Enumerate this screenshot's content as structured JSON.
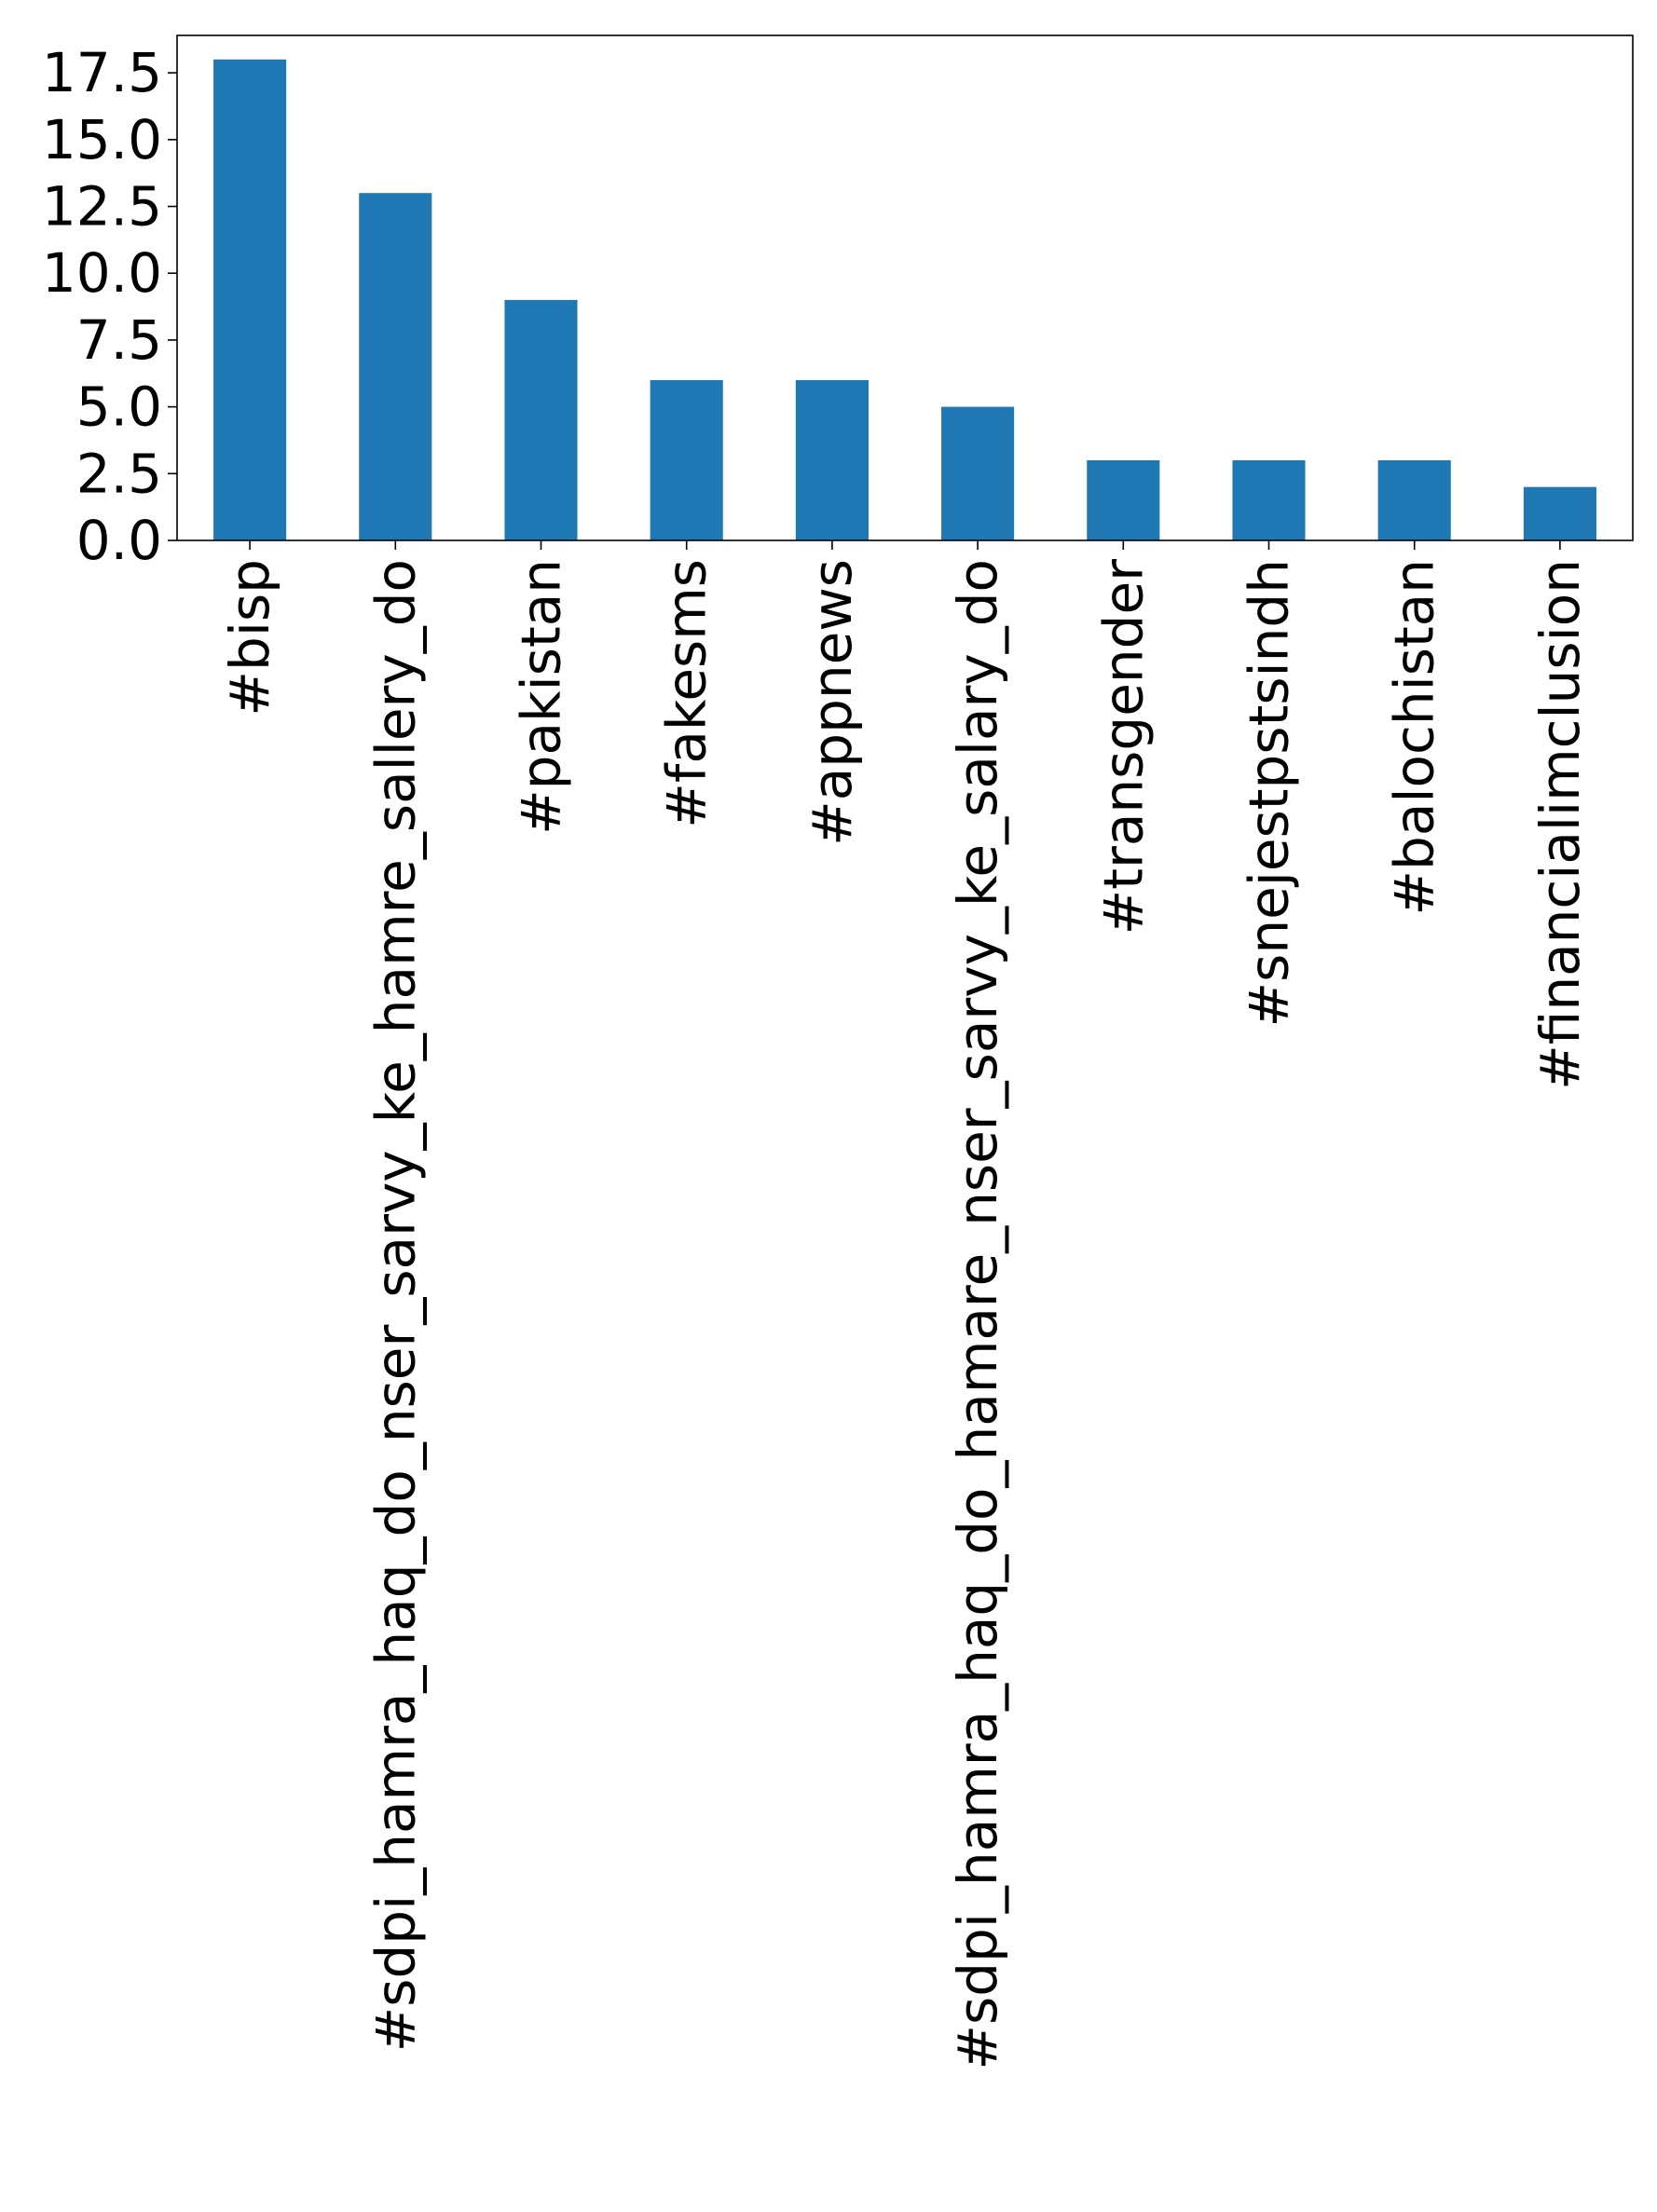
{
  "chart_data": {
    "type": "bar",
    "title": "",
    "xlabel": "",
    "ylabel": "",
    "categories": [
      "#bisp",
      "#sdpi_hamra_haq_do_nser_sarvy_ke_hamre_sallery_do",
      "#pakistan",
      "#fakesms",
      "#appnews",
      "#sdpi_hamra_haq_do_hamare_nser_sarvy_ke_salary_do",
      "#transgender",
      "#snejestpstsindh",
      "#balochistan",
      "#financialimclusion"
    ],
    "values": [
      18,
      13,
      9,
      6,
      6,
      5,
      3,
      3,
      3,
      2
    ],
    "ylim": [
      0,
      18.9
    ],
    "yticks": [
      "0.0",
      "2.5",
      "5.0",
      "7.5",
      "10.0",
      "12.5",
      "15.0",
      "17.5"
    ],
    "grid": false,
    "legend": "none",
    "bar_color": "#1f77b4"
  }
}
